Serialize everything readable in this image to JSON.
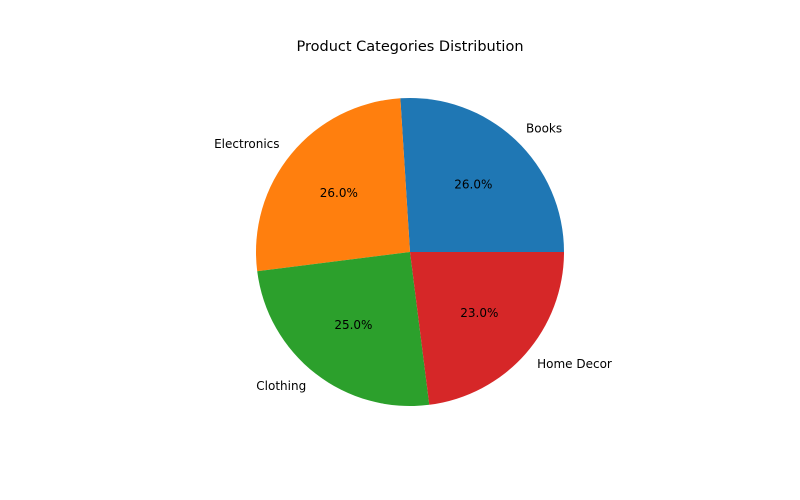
{
  "chart_data": {
    "type": "pie",
    "title": "Product Categories Distribution",
    "categories": [
      "Books",
      "Electronics",
      "Clothing",
      "Home Decor"
    ],
    "values": [
      26.0,
      26.0,
      25.0,
      23.0
    ],
    "percent_labels": [
      "26.0%",
      "26.0%",
      "25.0%",
      "23.0%"
    ],
    "colors": [
      "#1f77b4",
      "#ff7f0e",
      "#2ca02c",
      "#d62728"
    ],
    "start_angle_deg": 0,
    "direction": "counterclockwise",
    "legend": "none"
  }
}
